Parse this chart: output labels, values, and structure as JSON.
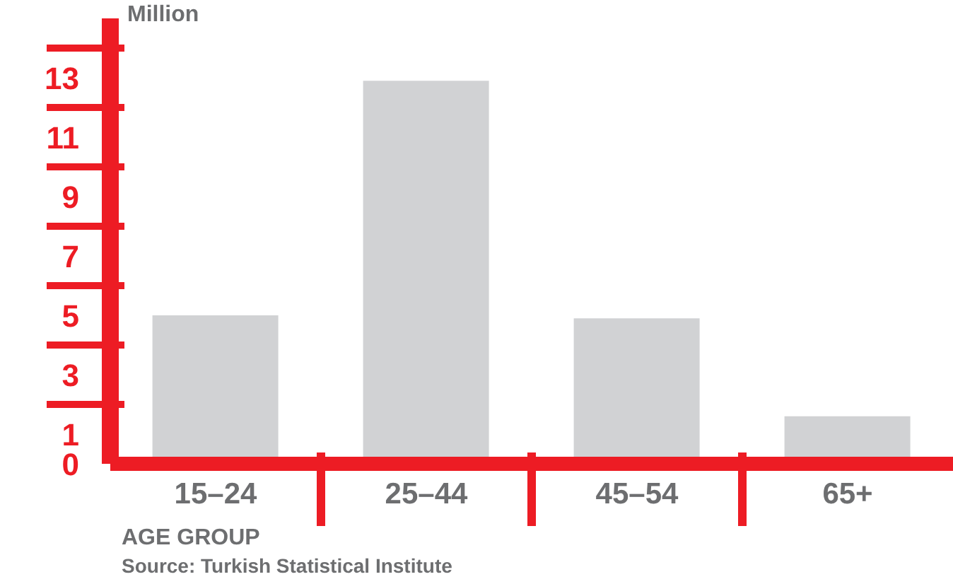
{
  "chart_data": {
    "type": "bar",
    "ylabel": "Million",
    "xlabel": "AGE GROUP",
    "annotations": [
      "Source: Turkish Statistical Institute"
    ],
    "categories": [
      "15–24",
      "25–44",
      "45–54",
      "65+"
    ],
    "values": [
      5.0,
      12.9,
      4.9,
      1.6
    ],
    "color": "#d1d2d4",
    "ylim": [
      0,
      15
    ],
    "yticks": [
      0,
      1,
      3,
      5,
      7,
      9,
      11,
      13
    ],
    "grid": false,
    "legend": false
  }
}
